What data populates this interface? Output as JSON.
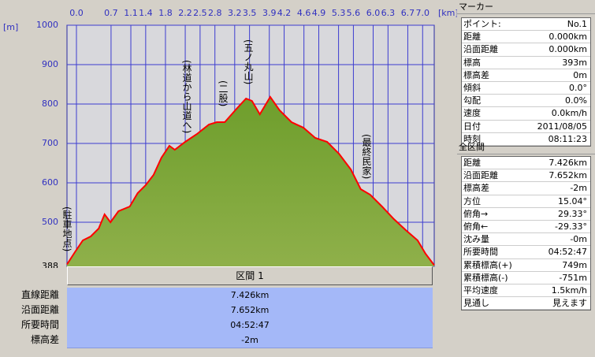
{
  "chart_data": {
    "type": "area",
    "y_unit": "[m]",
    "x_unit": "[km]",
    "x": [
      0,
      0.16,
      0.32,
      0.48,
      0.64,
      0.76,
      0.88,
      1.04,
      1.27,
      1.43,
      1.59,
      1.75,
      1.91,
      2.07,
      2.18,
      2.39,
      2.63,
      2.87,
      3.03,
      3.19,
      3.43,
      3.62,
      3.74,
      3.9,
      4.11,
      4.3,
      4.54,
      4.78,
      5.02,
      5.26,
      5.5,
      5.74,
      5.94,
      6.13,
      6.37,
      6.61,
      6.85,
      7.09,
      7.25,
      7.426
    ],
    "values": [
      393,
      424,
      454,
      464,
      484,
      520,
      500,
      528,
      540,
      574,
      594,
      620,
      664,
      694,
      684,
      704,
      724,
      748,
      754,
      754,
      788,
      814,
      808,
      774,
      818,
      784,
      754,
      740,
      714,
      704,
      674,
      634,
      584,
      570,
      540,
      508,
      480,
      454,
      420,
      391
    ],
    "color": "#6e9e2c",
    "line_color": "#ff0000",
    "xlim": [
      0,
      7.426
    ],
    "ylim": [
      388,
      1000
    ],
    "yticks": [
      388,
      500,
      600,
      700,
      800,
      900,
      1000
    ],
    "xticks": [
      {
        "value": 0,
        "label": "0.0"
      },
      0.7,
      1.1,
      1.4,
      1.8,
      2.2,
      2.5,
      2.8,
      3.2,
      3.5,
      3.9,
      4.2,
      4.6,
      4.9,
      5.3,
      5.6,
      {
        "value": 6,
        "label": "6.0"
      },
      6.3,
      6.7,
      {
        "value": 7,
        "label": "7.0"
      }
    ],
    "grid": true,
    "annotations": [
      "(駐車地点)",
      "(林道から山道へ)",
      "(二股)",
      "(五ノ丸山)",
      "(最終民家)"
    ]
  },
  "section_table": {
    "header": "区間 1",
    "rows": [
      [
        "直線距離",
        "7.426km"
      ],
      [
        "沿面距離",
        "7.652km"
      ],
      [
        "所要時間",
        "04:52:47"
      ],
      [
        "標高差",
        "-2m"
      ]
    ]
  },
  "marker_panel": {
    "title": "マーカー",
    "rows": [
      [
        "ポイント:",
        "No.1"
      ],
      [
        "距離",
        "0.000km"
      ],
      [
        "沿面距離",
        "0.000km"
      ],
      [
        "標高",
        "393m"
      ],
      [
        "標高差",
        "0m"
      ],
      [
        "傾斜",
        "0.0°"
      ],
      [
        "勾配",
        "0.0%"
      ],
      [
        "速度",
        "0.0km/h"
      ],
      [
        "日付",
        "2011/08/05"
      ],
      [
        "時刻",
        "08:11:23"
      ]
    ]
  },
  "total_panel": {
    "title": "全区間",
    "rows": [
      [
        "距離",
        "7.426km"
      ],
      [
        "沿面距離",
        "7.652km"
      ],
      [
        "標高差",
        "-2m"
      ],
      [
        "方位",
        "15.04°"
      ],
      [
        "俯角→",
        "29.33°"
      ],
      [
        "俯角←",
        "-29.33°"
      ],
      [
        "沈み量",
        "-0m"
      ],
      [
        "所要時間",
        "04:52:47"
      ],
      [
        "累積標高(+)",
        "749m"
      ],
      [
        "累積標高(-)",
        "-751m"
      ],
      [
        "平均速度",
        "1.5km/h"
      ],
      [
        "見通し",
        "見えます"
      ]
    ]
  }
}
